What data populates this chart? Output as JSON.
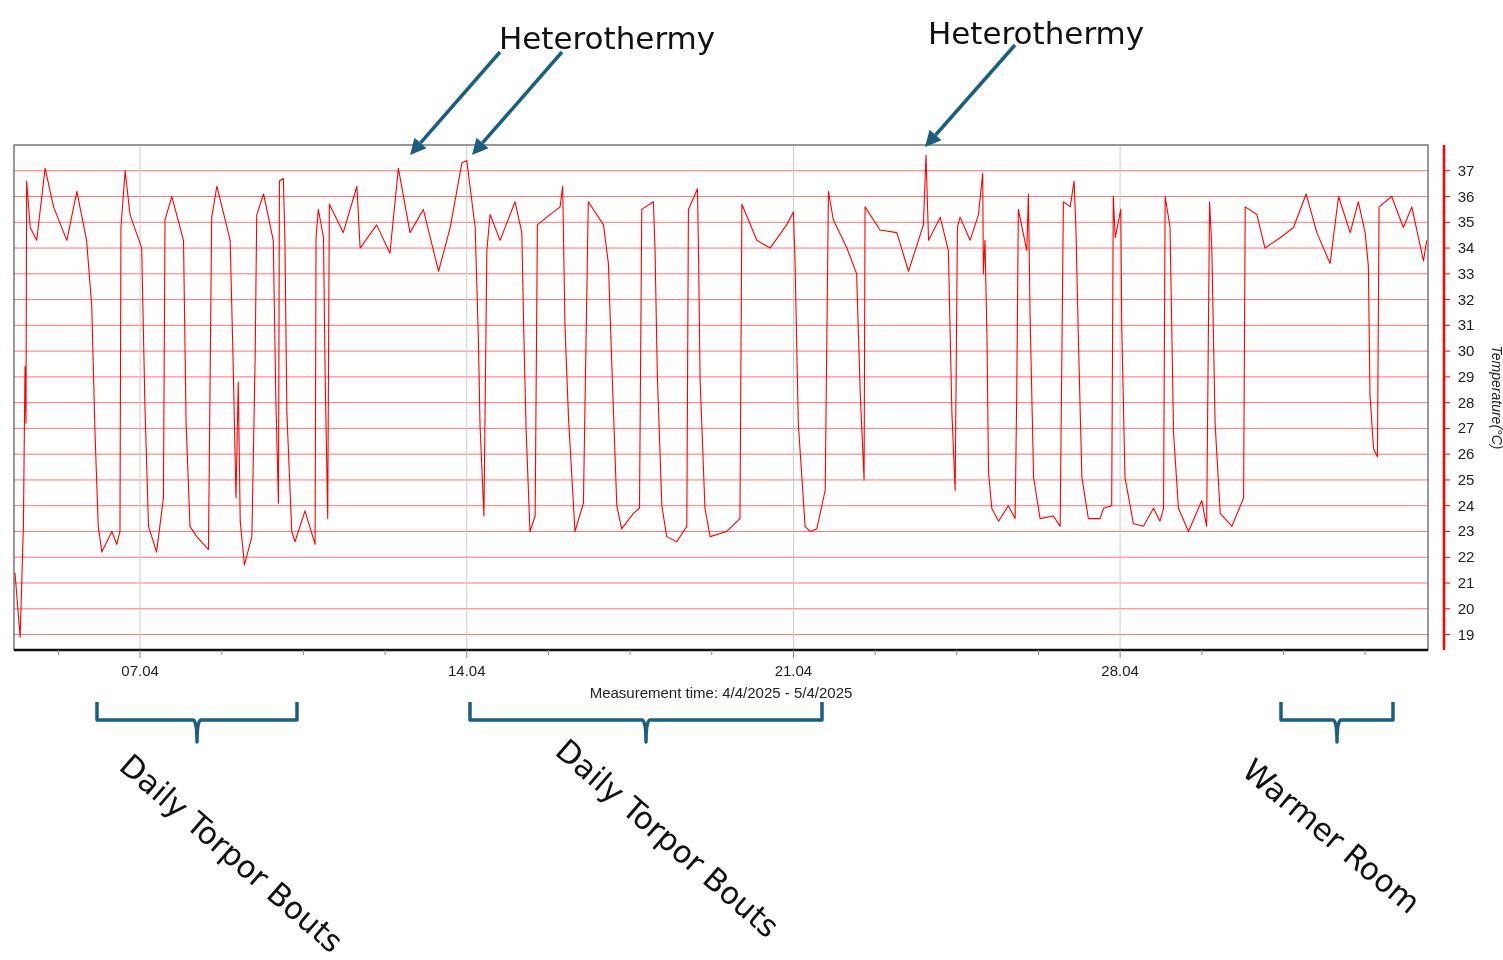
{
  "chart_data": {
    "type": "line",
    "xlabel": "Measurement time: 4/4/2025 - 5/4/2025",
    "ylabel": "Temperature(°C)",
    "annotations": [
      "Heterothermy",
      "Heterothermy",
      "Daily Torpor Bouts",
      "Daily Torpor Bouts",
      "Warmer Room"
    ],
    "color": "#ff0000",
    "grid": true,
    "xlim": [
      "2025-04-04T07:10",
      "2025-05-04T14:20"
    ],
    "ylim": [
      18.4,
      38
    ],
    "yticks": [
      19,
      20,
      21,
      22,
      23,
      24,
      25,
      26,
      27,
      28,
      29,
      30,
      31,
      32,
      33,
      34,
      35,
      36,
      37
    ],
    "xticks": [
      {
        "value": "2025-04-05T06:00",
        "label": null
      },
      {
        "value": "2025-04-07T00:00",
        "label": "07.04"
      },
      {
        "value": "2025-04-08T18:00",
        "label": null
      },
      {
        "value": "2025-04-10T12:00",
        "label": null
      },
      {
        "value": "2025-04-12T06:00",
        "label": null
      },
      {
        "value": "2025-04-14T00:00",
        "label": "14.04"
      },
      {
        "value": "2025-04-15T18:00",
        "label": null
      },
      {
        "value": "2025-04-17T12:00",
        "label": null
      },
      {
        "value": "2025-04-19T06:00",
        "label": null
      },
      {
        "value": "2025-04-21T00:00",
        "label": "21.04"
      },
      {
        "value": "2025-04-22T18:00",
        "label": null
      },
      {
        "value": "2025-04-24T12:00",
        "label": null
      },
      {
        "value": "2025-04-26T06:00",
        "label": null
      },
      {
        "value": "2025-04-28T00:00",
        "label": "28.04"
      },
      {
        "value": "2025-04-29T18:00",
        "label": null
      },
      {
        "value": "2025-05-01T12:00",
        "label": null
      },
      {
        "value": "2025-05-03T06:00",
        "label": null
      }
    ],
    "x": [
      "2025-04-04T07:40",
      "2025-04-04T10:20",
      "2025-04-04T12:00",
      "2025-04-04T12:50",
      "2025-04-04T13:20",
      "2025-04-04T13:40",
      "2025-04-04T15:30",
      "2025-04-04T18:50",
      "2025-04-04T23:10",
      "2025-04-05T03:30",
      "2025-04-05T10:20",
      "2025-04-05T15:30",
      "2025-04-05T20:30",
      "2025-04-05T23:10",
      "2025-04-06T00:50",
      "2025-04-06T02:30",
      "2025-04-06T04:20",
      "2025-04-06T09:30",
      "2025-04-06T12:00",
      "2025-04-06T13:40",
      "2025-04-06T14:10",
      "2025-04-06T16:20",
      "2025-04-06T18:50",
      "2025-04-07T00:50",
      "2025-04-07T02:30",
      "2025-04-07T04:20",
      "2025-04-07T08:30",
      "2025-04-07T12:00",
      "2025-04-07T12:50",
      "2025-04-07T16:20",
      "2025-04-07T22:20",
      "2025-04-07T23:40",
      "2025-04-08T01:40",
      "2025-04-08T05:10",
      "2025-04-08T11:10",
      "2025-04-08T12:50",
      "2025-04-08T15:30",
      "2025-04-08T22:20",
      "2025-04-08T23:40",
      "2025-04-09T01:20",
      "2025-04-09T02:30",
      "2025-04-09T03:30",
      "2025-04-09T05:40",
      "2025-04-09T09:30",
      "2025-04-09T11:10",
      "2025-04-09T12:00",
      "2025-04-09T15:30",
      "2025-04-09T20:30",
      "2025-04-09T21:50",
      "2025-04-09T23:10",
      "2025-04-09T23:40",
      "2025-04-10T01:40",
      "2025-04-10T02:30",
      "2025-04-10T03:30",
      "2025-04-10T06:00",
      "2025-04-10T07:40",
      "2025-04-10T12:50",
      "2025-04-10T18:00",
      "2025-04-10T18:30",
      "2025-04-10T19:40",
      "2025-04-10T22:20",
      "2025-04-10T23:10",
      "2025-04-11T00:30",
      "2025-04-11T01:20",
      "2025-04-11T08:30",
      "2025-04-11T15:30",
      "2025-04-11T17:10",
      "2025-04-12T01:40",
      "2025-04-12T08:30",
      "2025-04-12T12:50",
      "2025-04-12T18:50",
      "2025-04-13T01:40",
      "2025-04-13T09:30",
      "2025-04-13T15:30",
      "2025-04-13T21:30",
      "2025-04-14T00:00",
      "2025-04-14T04:20",
      "2025-04-14T06:00",
      "2025-04-14T06:50",
      "2025-04-14T08:50",
      "2025-04-14T10:20",
      "2025-04-14T12:00",
      "2025-04-14T17:10",
      "2025-04-15T00:50",
      "2025-04-15T04:20",
      "2025-04-15T05:10",
      "2025-04-15T06:30",
      "2025-04-15T08:30",
      "2025-04-15T11:10",
      "2025-04-15T12:20",
      "2025-04-15T17:10",
      "2025-04-16T00:00",
      "2025-04-16T01:20",
      "2025-04-16T02:30",
      "2025-04-16T04:20",
      "2025-04-16T07:40",
      "2025-04-16T12:00",
      "2025-04-16T14:30",
      "2025-04-16T22:20",
      "2025-04-17T00:50",
      "2025-04-17T02:30",
      "2025-04-17T05:10",
      "2025-04-17T07:40",
      "2025-04-17T13:40",
      "2025-04-17T16:50",
      "2025-04-17T18:00",
      "2025-04-18T00:00",
      "2025-04-18T00:50",
      "2025-04-18T02:00",
      "2025-04-18T04:20",
      "2025-04-18T06:50",
      "2025-04-18T12:00",
      "2025-04-18T17:10",
      "2025-04-18T18:00",
      "2025-04-18T22:40",
      "2025-04-18T23:10",
      "2025-04-19T00:00",
      "2025-04-19T02:30",
      "2025-04-19T05:10",
      "2025-04-19T13:40",
      "2025-04-19T20:30",
      "2025-04-19T21:30",
      "2025-04-20T05:10",
      "2025-04-20T12:00",
      "2025-04-20T20:30",
      "2025-04-21T00:00",
      "2025-04-21T00:50",
      "2025-04-21T02:30",
      "2025-04-21T06:00",
      "2025-04-21T08:30",
      "2025-04-21T12:00",
      "2025-04-21T16:20",
      "2025-04-21T18:00",
      "2025-04-21T20:30",
      "2025-04-22T03:30",
      "2025-04-22T08:30",
      "2025-04-22T10:20",
      "2025-04-22T12:20",
      "2025-04-22T12:50",
      "2025-04-22T20:30",
      "2025-04-23T05:10",
      "2025-04-23T11:10",
      "2025-04-23T18:50",
      "2025-04-23T20:10",
      "2025-04-23T21:30",
      "2025-04-24T03:30",
      "2025-04-24T07:40",
      "2025-04-24T09:30",
      "2025-04-24T11:10",
      "2025-04-24T12:20",
      "2025-04-24T13:40",
      "2025-04-24T18:50",
      "2025-04-24T23:10",
      "2025-04-25T01:20",
      "2025-04-25T01:40",
      "2025-04-25T02:30",
      "2025-04-25T03:30",
      "2025-04-25T04:20",
      "2025-04-25T06:00",
      "2025-04-25T09:30",
      "2025-04-25T14:30",
      "2025-04-25T18:00",
      "2025-04-25T18:50",
      "2025-04-25T19:40",
      "2025-04-26T00:00",
      "2025-04-26T00:50",
      "2025-04-26T01:40",
      "2025-04-26T03:30",
      "2025-04-26T06:50",
      "2025-04-26T13:40",
      "2025-04-26T17:10",
      "2025-04-26T18:50",
      "2025-04-26T22:20",
      "2025-04-27T00:20",
      "2025-04-27T01:20",
      "2025-04-27T02:30",
      "2025-04-27T04:20",
      "2025-04-27T07:40",
      "2025-04-27T13:40",
      "2025-04-27T15:30",
      "2025-04-27T19:40",
      "2025-04-27T20:30",
      "2025-04-27T21:30",
      "2025-04-28T00:20",
      "2025-04-28T00:50",
      "2025-04-28T02:30",
      "2025-04-28T06:50",
      "2025-04-28T12:00",
      "2025-04-28T17:10",
      "2025-04-28T20:30",
      "2025-04-28T22:20",
      "2025-04-28T23:10",
      "2025-04-29T01:40",
      "2025-04-29T03:30",
      "2025-04-29T06:00",
      "2025-04-29T11:10",
      "2025-04-29T18:00",
      "2025-04-29T20:30",
      "2025-04-29T22:00",
      "2025-04-29T23:10",
      "2025-04-30T00:50",
      "2025-04-30T03:30",
      "2025-04-30T09:30",
      "2025-04-30T15:30",
      "2025-04-30T16:20",
      "2025-04-30T22:20",
      "2025-05-01T02:30",
      "2025-05-01T10:20",
      "2025-05-01T17:10",
      "2025-05-01T23:40",
      "2025-05-02T05:10",
      "2025-05-02T12:00",
      "2025-05-02T16:20",
      "2025-05-02T22:20",
      "2025-05-03T02:30",
      "2025-05-03T06:00",
      "2025-05-03T07:40",
      "2025-05-03T08:30",
      "2025-05-03T10:20",
      "2025-05-03T12:20",
      "2025-05-03T13:10",
      "2025-05-03T19:40",
      "2025-05-04T01:40",
      "2025-05-04T06:00",
      "2025-05-04T12:00",
      "2025-05-04T13:40"
    ],
    "values": [
      21.4,
      18.9,
      23.2,
      29.4,
      27.2,
      36.6,
      34.8,
      34.3,
      37.1,
      35.6,
      34.3,
      36.2,
      34.3,
      31.7,
      26.8,
      23.2,
      22.2,
      23.0,
      22.5,
      23.0,
      34.8,
      37.0,
      35.3,
      34.0,
      27.9,
      23.2,
      22.2,
      24.3,
      35.1,
      36.0,
      34.3,
      27.2,
      23.2,
      22.8,
      22.3,
      35.2,
      36.4,
      34.3,
      30.2,
      24.3,
      28.8,
      23.4,
      21.7,
      22.8,
      29.7,
      35.3,
      36.1,
      34.3,
      28.1,
      24.1,
      36.6,
      36.7,
      34.3,
      27.6,
      23.0,
      22.6,
      23.8,
      22.5,
      34.4,
      35.5,
      34.4,
      29.1,
      23.5,
      35.7,
      34.6,
      36.4,
      34.0,
      34.9,
      33.8,
      37.1,
      34.6,
      35.5,
      33.1,
      34.8,
      37.3,
      37.4,
      34.8,
      30.4,
      27.1,
      23.6,
      33.9,
      35.3,
      34.3,
      35.8,
      34.6,
      31.3,
      27.0,
      23.0,
      23.6,
      34.9,
      35.2,
      35.6,
      36.4,
      31.0,
      27.4,
      23.0,
      24.1,
      35.8,
      34.9,
      33.4,
      29.7,
      24.0,
      23.1,
      23.7,
      23.9,
      35.5,
      35.8,
      33.9,
      29.1,
      24.0,
      22.8,
      22.6,
      23.2,
      35.5,
      36.3,
      33.9,
      28.9,
      23.9,
      22.8,
      23.0,
      23.5,
      35.7,
      34.3,
      34.0,
      34.9,
      35.4,
      33.5,
      27.2,
      23.2,
      23.0,
      23.1,
      24.6,
      36.2,
      35.1,
      34.0,
      33.0,
      28.4,
      25.0,
      35.6,
      34.7,
      34.6,
      33.1,
      34.9,
      37.6,
      34.3,
      35.2,
      33.9,
      27.6,
      24.6,
      34.8,
      35.2,
      34.3,
      35.3,
      36.9,
      33.0,
      34.3,
      30.7,
      25.3,
      23.9,
      23.4,
      24.0,
      23.5,
      28.3,
      35.5,
      33.9,
      36.1,
      31.5,
      25.1,
      23.5,
      23.6,
      23.2,
      35.8,
      35.6,
      36.6,
      34.6,
      30.6,
      25.1,
      23.5,
      23.5,
      23.9,
      24.0,
      36.0,
      34.4,
      35.5,
      31.0,
      25.1,
      23.3,
      23.2,
      23.9,
      23.4,
      23.9,
      36.0,
      34.8,
      26.8,
      23.9,
      23.0,
      24.2,
      23.2,
      35.8,
      34.0,
      27.2,
      23.7,
      23.2,
      24.3,
      35.6,
      35.3,
      34.0,
      34.4,
      34.8,
      36.1,
      34.6,
      33.4,
      36.0,
      34.6,
      35.8,
      34.6,
      33.3,
      28.3,
      26.2,
      25.9,
      35.6,
      36.0,
      34.8,
      35.6,
      33.5,
      34.3
    ]
  }
}
